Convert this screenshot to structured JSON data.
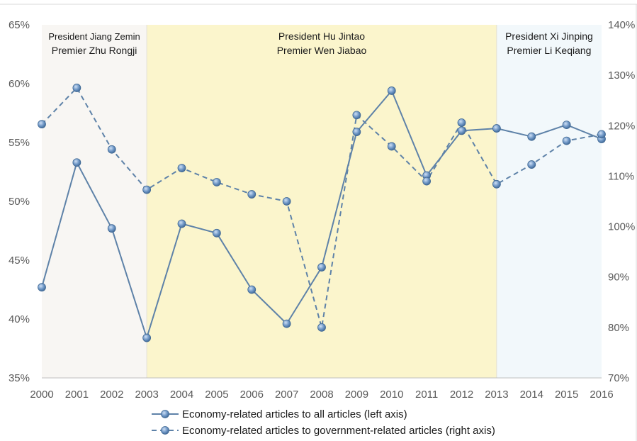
{
  "chart_data": {
    "type": "line",
    "x": [
      2000,
      2001,
      2002,
      2003,
      2004,
      2005,
      2006,
      2007,
      2008,
      2009,
      2010,
      2011,
      2012,
      2013,
      2014,
      2015,
      2016
    ],
    "series": [
      {
        "name": "Economy-related articles to all articles (left axis)",
        "axis": "left",
        "style": "solid",
        "values": [
          42.7,
          53.3,
          47.7,
          38.4,
          48.1,
          47.3,
          42.5,
          39.6,
          44.4,
          55.9,
          59.4,
          52.2,
          56.0,
          56.2,
          55.5,
          56.5,
          55.3
        ]
      },
      {
        "name": "Economy-related articles to government-related articles (right axis)",
        "axis": "right",
        "style": "dashed",
        "values": [
          120.3,
          127.5,
          115.3,
          107.3,
          111.6,
          108.8,
          106.4,
          105.0,
          80.0,
          122.1,
          115.9,
          109.0,
          120.6,
          108.4,
          112.3,
          117.0,
          118.3
        ]
      }
    ],
    "left_axis": {
      "ylim": [
        35,
        65
      ],
      "ticks": [
        "35%",
        "40%",
        "45%",
        "50%",
        "55%",
        "60%",
        "65%"
      ]
    },
    "right_axis": {
      "ylim": [
        70,
        140
      ],
      "ticks": [
        "70%",
        "80%",
        "90%",
        "100%",
        "110%",
        "120%",
        "130%",
        "140%"
      ]
    },
    "x_ticks": [
      "2000",
      "2001",
      "2002",
      "2003",
      "2004",
      "2005",
      "2006",
      "2007",
      "2008",
      "2009",
      "2010",
      "2011",
      "2012",
      "2013",
      "2014",
      "2015",
      "2016"
    ],
    "eras": [
      {
        "start": 2000,
        "end": 2003,
        "color": "#f8f6f3",
        "lines": [
          "President Jiang Zemin",
          "Premier Zhu Rongji"
        ]
      },
      {
        "start": 2003,
        "end": 2013,
        "color": "#fbf5cc",
        "lines": [
          "President Hu Jintao",
          "Premier Wen Jiabao"
        ]
      },
      {
        "start": 2013,
        "end": 2016,
        "color": "#f2f8fb",
        "lines": [
          "President Xi Jinping",
          "Premier Li Keqiang"
        ]
      }
    ],
    "line_color": "#5e82a8",
    "marker_color": "#6b93c2",
    "legend_position": "bottom"
  }
}
